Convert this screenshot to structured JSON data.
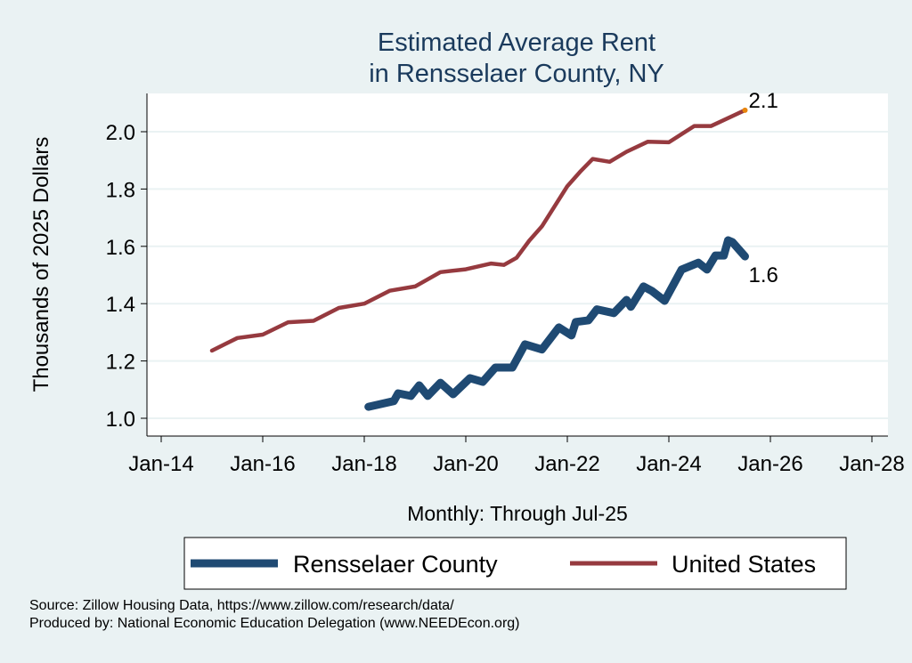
{
  "chart_data": {
    "type": "line",
    "title": [
      "Estimated Average Rent",
      "in Rensselaer County, NY"
    ],
    "xlabel": "Monthly: Through Jul-25",
    "ylabel": "Thousands of 2025 Dollars",
    "xlim": [
      "2014-01",
      "2028-01"
    ],
    "ylim": [
      1.0,
      2.1
    ],
    "x_ticks": [
      "Jan-14",
      "Jan-16",
      "Jan-18",
      "Jan-20",
      "Jan-22",
      "Jan-24",
      "Jan-26",
      "Jan-28"
    ],
    "x_tick_dates": [
      "2014-01",
      "2016-01",
      "2018-01",
      "2020-01",
      "2022-01",
      "2024-01",
      "2026-01",
      "2028-01"
    ],
    "y_ticks": [
      "1.0",
      "1.2",
      "1.4",
      "1.6",
      "1.8",
      "2.0"
    ],
    "grid": true,
    "legend_position": "bottom",
    "series": [
      {
        "name": "Rensselaer County",
        "color": "#1f4a73",
        "end_label": "1.6",
        "points": [
          [
            "2018-02",
            1.04
          ],
          [
            "2018-08",
            1.06
          ],
          [
            "2018-09",
            1.087
          ],
          [
            "2018-12",
            1.078
          ],
          [
            "2019-02",
            1.115
          ],
          [
            "2019-04",
            1.078
          ],
          [
            "2019-07",
            1.124
          ],
          [
            "2019-10",
            1.084
          ],
          [
            "2020-02",
            1.14
          ],
          [
            "2020-05",
            1.127
          ],
          [
            "2020-08",
            1.177
          ],
          [
            "2020-12",
            1.177
          ],
          [
            "2021-03",
            1.258
          ],
          [
            "2021-07",
            1.24
          ],
          [
            "2021-11",
            1.317
          ],
          [
            "2022-02",
            1.289
          ],
          [
            "2022-03",
            1.336
          ],
          [
            "2022-06",
            1.342
          ],
          [
            "2022-08",
            1.38
          ],
          [
            "2022-12",
            1.367
          ],
          [
            "2023-03",
            1.413
          ],
          [
            "2023-04",
            1.389
          ],
          [
            "2023-07",
            1.46
          ],
          [
            "2023-09",
            1.444
          ],
          [
            "2023-12",
            1.41
          ],
          [
            "2024-04",
            1.519
          ],
          [
            "2024-08",
            1.543
          ],
          [
            "2024-10",
            1.519
          ],
          [
            "2024-12",
            1.568
          ],
          [
            "2025-02",
            1.568
          ],
          [
            "2025-03",
            1.621
          ],
          [
            "2025-04",
            1.615
          ],
          [
            "2025-07",
            1.565
          ]
        ]
      },
      {
        "name": "United States",
        "color": "#963a3f",
        "end_label": "2.1",
        "end_marker_color": "#e8850c",
        "points": [
          [
            "2015-01",
            1.236
          ],
          [
            "2015-07",
            1.28
          ],
          [
            "2016-01",
            1.292
          ],
          [
            "2016-07",
            1.335
          ],
          [
            "2017-01",
            1.34
          ],
          [
            "2017-07",
            1.385
          ],
          [
            "2018-01",
            1.4
          ],
          [
            "2018-07",
            1.445
          ],
          [
            "2019-01",
            1.46
          ],
          [
            "2019-07",
            1.51
          ],
          [
            "2020-01",
            1.52
          ],
          [
            "2020-07",
            1.54
          ],
          [
            "2020-10",
            1.535
          ],
          [
            "2021-01",
            1.56
          ],
          [
            "2021-04",
            1.62
          ],
          [
            "2021-07",
            1.67
          ],
          [
            "2021-10",
            1.74
          ],
          [
            "2022-01",
            1.81
          ],
          [
            "2022-04",
            1.86
          ],
          [
            "2022-07",
            1.905
          ],
          [
            "2022-11",
            1.895
          ],
          [
            "2023-03",
            1.93
          ],
          [
            "2023-08",
            1.965
          ],
          [
            "2024-01",
            1.963
          ],
          [
            "2024-07",
            2.02
          ],
          [
            "2024-11",
            2.02
          ],
          [
            "2025-07",
            2.075
          ]
        ]
      }
    ]
  },
  "footer": {
    "source": "Source: Zillow Housing Data, https://www.zillow.com/research/data/",
    "produced_by": "Produced by: National Economic Education Delegation (www.NEEDEcon.org)"
  }
}
